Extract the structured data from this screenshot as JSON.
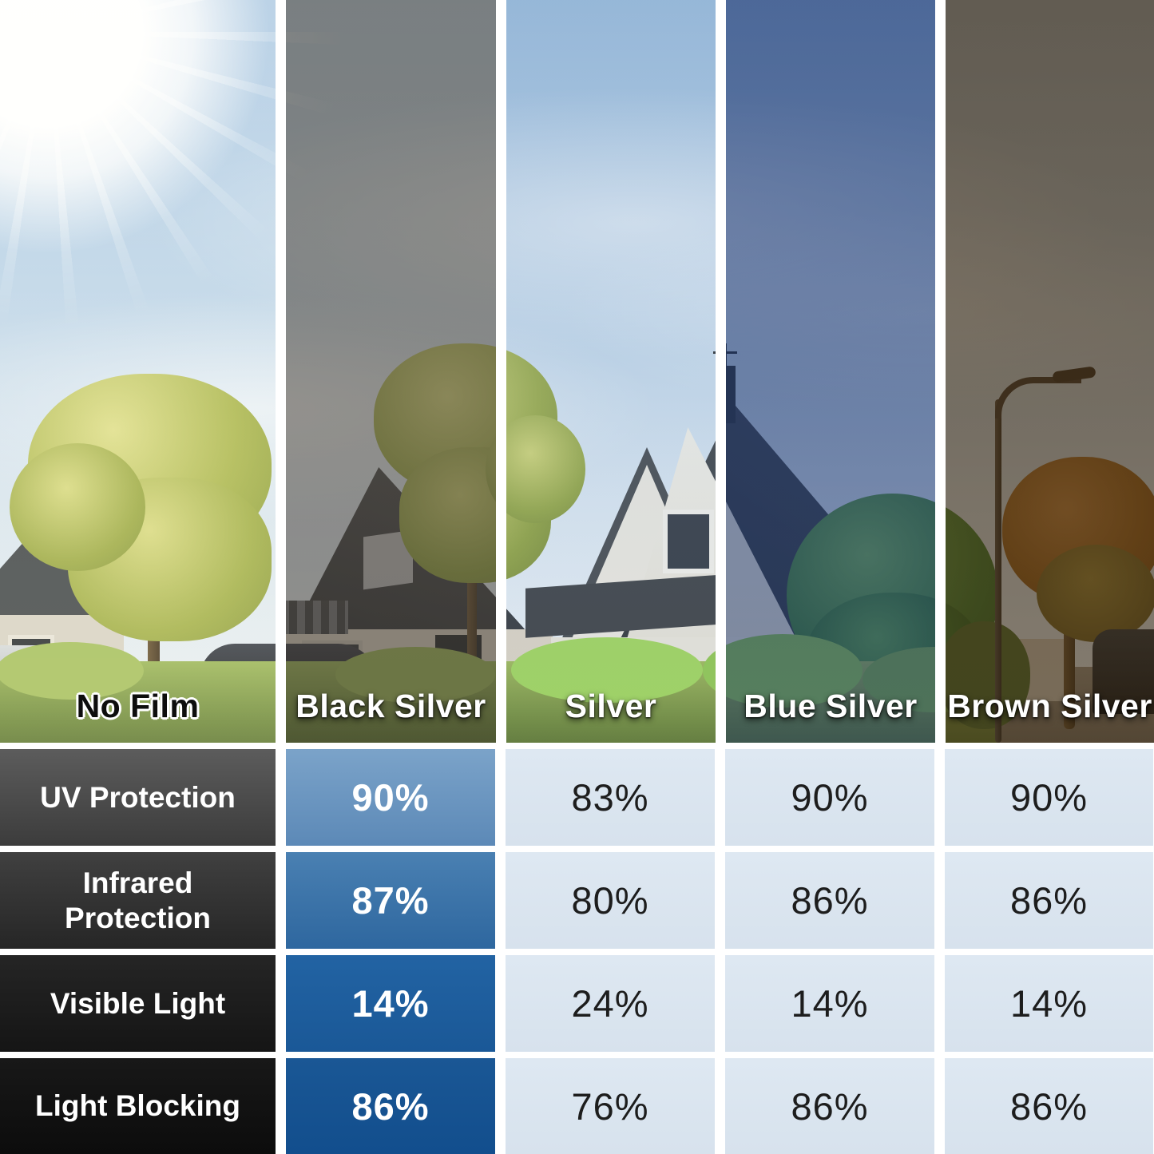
{
  "films": [
    {
      "label": "No Film"
    },
    {
      "label": "Black Silver"
    },
    {
      "label": "Silver"
    },
    {
      "label": "Blue Silver"
    },
    {
      "label": "Brown Silver"
    }
  ],
  "table": {
    "rows": [
      {
        "label": "UV Protection",
        "values": [
          "90%",
          "83%",
          "90%",
          "90%"
        ]
      },
      {
        "label": "Infrared Protection",
        "values": [
          "87%",
          "80%",
          "86%",
          "86%"
        ]
      },
      {
        "label": "Visible Light",
        "values": [
          "14%",
          "24%",
          "14%",
          "14%"
        ]
      },
      {
        "label": "Light Blocking",
        "values": [
          "86%",
          "76%",
          "86%",
          "86%"
        ]
      }
    ]
  },
  "colors": {
    "highlight_top": "#7ba3c9",
    "highlight_bottom": "#124e8d",
    "light_cell_bg": "#dae4ef",
    "row_label_light": "#5c5c5c",
    "row_label_dark": "#0c0c0c"
  },
  "chart_data": {
    "type": "table",
    "title": "",
    "row_headers": [
      "UV Protection",
      "Infrared Protection",
      "Visible Light",
      "Light Blocking"
    ],
    "column_headers": [
      "Black Silver",
      "Silver",
      "Blue Silver",
      "Brown Silver"
    ],
    "baseline_column": "No Film",
    "values": [
      [
        "90%",
        "83%",
        "90%",
        "90%"
      ],
      [
        "87%",
        "80%",
        "86%",
        "86%"
      ],
      [
        "14%",
        "24%",
        "14%",
        "14%"
      ],
      [
        "86%",
        "76%",
        "86%",
        "86%"
      ]
    ],
    "highlighted_column": "Black Silver"
  }
}
